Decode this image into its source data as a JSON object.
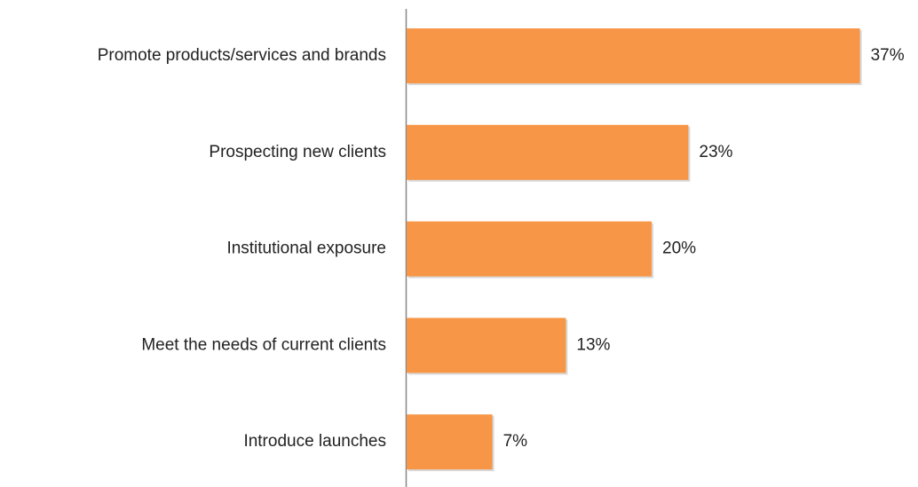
{
  "chart_data": {
    "type": "hbar",
    "categories": [
      "Promote products/services and brands",
      "Prospecting new clients",
      "Institutional exposure",
      "Meet the needs of current clients",
      "Introduce launches"
    ],
    "values": [
      37,
      23,
      20,
      13,
      7
    ],
    "value_labels": [
      "37%",
      "23%",
      "20%",
      "13%",
      "7%"
    ],
    "color": "#f79646"
  }
}
